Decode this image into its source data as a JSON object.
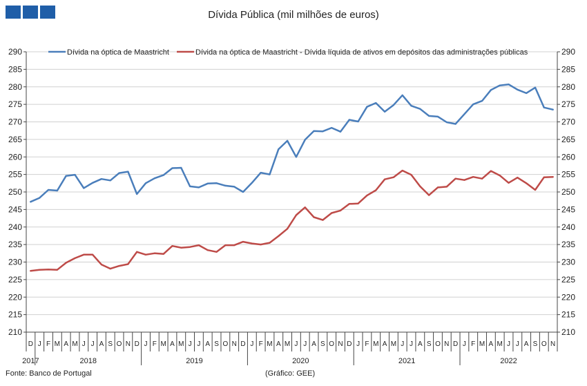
{
  "header": {
    "logo_colors": [
      "#1f5ea8",
      "#1f5ea8",
      "#1f5ea8"
    ]
  },
  "footer": {
    "source": "Fonte: Banco de Portugal",
    "credit": "(Gráfico: GEE)"
  },
  "chart_data": {
    "type": "line",
    "title": "Dívida Pública (mil milhões de euros)",
    "xlabel": "",
    "ylabel": "",
    "ylim": [
      210,
      290
    ],
    "y_ticks": [
      210,
      215,
      220,
      225,
      230,
      235,
      240,
      245,
      250,
      255,
      260,
      265,
      270,
      275,
      280,
      285,
      290
    ],
    "y_axis_sides": "both",
    "grid": "horizontal",
    "legend_placement": "top",
    "x": [
      "D",
      "J",
      "F",
      "M",
      "A",
      "M",
      "J",
      "J",
      "A",
      "S",
      "O",
      "N",
      "D",
      "J",
      "F",
      "M",
      "A",
      "M",
      "J",
      "J",
      "A",
      "S",
      "O",
      "N",
      "D",
      "J",
      "F",
      "M",
      "A",
      "M",
      "J",
      "J",
      "A",
      "S",
      "O",
      "N",
      "D",
      "J",
      "F",
      "M",
      "A",
      "M",
      "J",
      "J",
      "A",
      "S",
      "O",
      "N",
      "D",
      "J",
      "F",
      "M",
      "A",
      "M",
      "J",
      "J",
      "A",
      "S",
      "O",
      "N"
    ],
    "year_labels": [
      {
        "label": "2017",
        "start": 0,
        "end": 0
      },
      {
        "label": "2018",
        "start": 1,
        "end": 12
      },
      {
        "label": "2019",
        "start": 13,
        "end": 24
      },
      {
        "label": "2020",
        "start": 25,
        "end": 36
      },
      {
        "label": "2021",
        "start": 37,
        "end": 48
      },
      {
        "label": "2022",
        "start": 49,
        "end": 59
      }
    ],
    "series": [
      {
        "name": "Dívida na óptica de Maastricht",
        "color": "#4a7ebb",
        "values": [
          247.2,
          248.3,
          250.6,
          250.4,
          254.6,
          254.9,
          251.1,
          252.6,
          253.7,
          253.3,
          255.4,
          255.8,
          249.4,
          252.5,
          253.9,
          254.8,
          256.8,
          256.9,
          251.6,
          251.3,
          252.4,
          252.5,
          251.8,
          251.5,
          250.0,
          252.6,
          255.5,
          255.0,
          262.2,
          264.6,
          260.0,
          264.9,
          267.4,
          267.3,
          268.3,
          267.2,
          270.6,
          270.1,
          274.3,
          275.4,
          272.9,
          274.8,
          277.6,
          274.6,
          273.7,
          271.7,
          271.5,
          269.9,
          269.4,
          272.2,
          275.0,
          276.0,
          279.1,
          280.4,
          280.7,
          279.2,
          278.2,
          279.8,
          274.1,
          273.5
        ]
      },
      {
        "name": "Dívida na óptica de Maastricht - Dívida líquida de ativos em depósitos das administrações públicas",
        "color": "#be4b48",
        "values": [
          227.5,
          227.8,
          227.9,
          227.8,
          229.8,
          231.1,
          232.1,
          232.1,
          229.3,
          228.1,
          228.9,
          229.4,
          232.9,
          232.1,
          232.5,
          232.3,
          234.6,
          234.1,
          234.3,
          234.8,
          233.4,
          232.9,
          234.8,
          234.8,
          235.8,
          235.3,
          235.0,
          235.5,
          237.4,
          239.5,
          243.4,
          245.6,
          242.8,
          242.0,
          244.0,
          244.7,
          246.6,
          246.7,
          249.0,
          250.5,
          253.6,
          254.2,
          256.1,
          254.9,
          251.6,
          249.1,
          251.3,
          251.5,
          253.8,
          253.4,
          254.3,
          253.8,
          256.0,
          254.7,
          252.6,
          254.1,
          252.5,
          250.6,
          254.2,
          254.3
        ]
      }
    ]
  }
}
